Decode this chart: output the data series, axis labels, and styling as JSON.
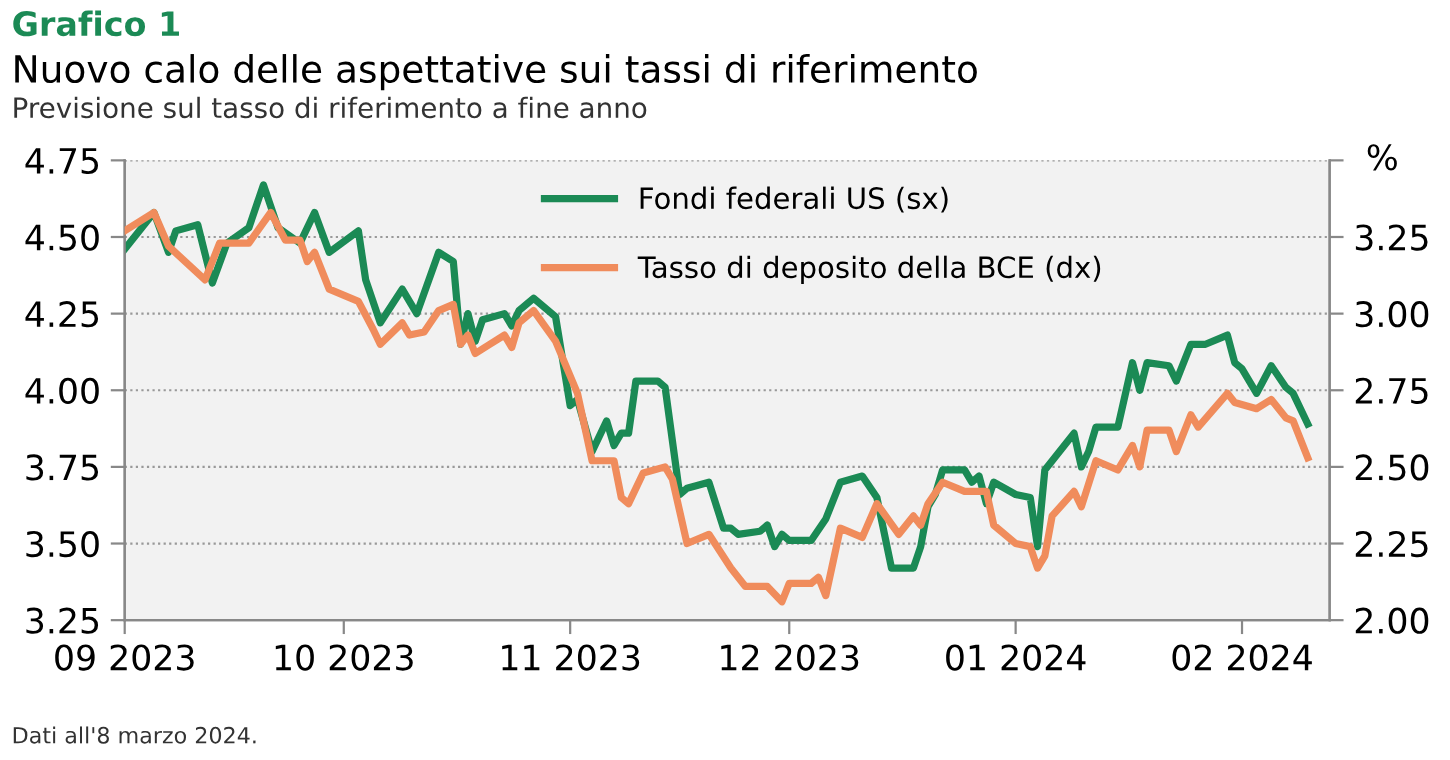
{
  "chart_data": {
    "type": "line",
    "title": "Nuovo calo delle aspettative sui tassi di riferimento",
    "subtitle": "Previsione sul tasso di riferimento a fine anno",
    "annotations": [
      "Grafico 1",
      "Dati all'8 marzo 2024."
    ],
    "y2label": "%",
    "series": [
      {
        "name": "Fondi federali US (sx)",
        "color": "#1b8a55",
        "x": [
          "2023-09-01",
          "2023-09-05",
          "2023-09-07",
          "2023-09-08",
          "2023-09-11",
          "2023-09-13",
          "2023-09-15",
          "2023-09-18",
          "2023-09-20",
          "2023-09-22",
          "2023-09-25",
          "2023-09-27",
          "2023-09-29",
          "2023-10-03",
          "2023-10-04",
          "2023-10-06",
          "2023-10-09",
          "2023-10-11",
          "2023-10-14",
          "2023-10-16",
          "2023-10-17",
          "2023-10-18",
          "2023-10-19",
          "2023-10-20",
          "2023-10-23",
          "2023-10-24",
          "2023-10-25",
          "2023-10-27",
          "2023-10-30",
          "2023-11-01",
          "2023-11-02",
          "2023-11-04",
          "2023-11-06",
          "2023-11-07",
          "2023-11-08",
          "2023-11-09",
          "2023-11-10",
          "2023-11-13",
          "2023-11-14",
          "2023-11-16",
          "2023-11-17",
          "2023-11-20",
          "2023-11-22",
          "2023-11-23",
          "2023-11-24",
          "2023-11-27",
          "2023-11-28",
          "2023-11-29",
          "2023-11-30",
          "2023-12-01",
          "2023-12-04",
          "2023-12-06",
          "2023-12-08",
          "2023-12-11",
          "2023-12-13",
          "2023-12-15",
          "2023-12-18",
          "2023-12-19",
          "2023-12-20",
          "2023-12-21",
          "2023-12-22",
          "2023-12-25",
          "2023-12-26",
          "2023-12-27",
          "2023-12-28",
          "2023-12-29",
          "2024-01-01",
          "2024-01-03",
          "2024-01-04",
          "2024-01-05",
          "2024-01-09",
          "2024-01-10",
          "2024-01-11",
          "2024-01-12",
          "2024-01-15",
          "2024-01-17",
          "2024-01-18",
          "2024-01-19",
          "2024-01-22",
          "2024-01-23",
          "2024-01-25",
          "2024-01-27",
          "2024-01-30",
          "2024-01-31",
          "2024-02-01",
          "2024-02-03",
          "2024-02-05",
          "2024-02-07",
          "2024-02-08",
          "2024-02-10"
        ],
        "values": [
          4.46,
          4.58,
          4.45,
          4.52,
          4.54,
          4.35,
          4.48,
          4.53,
          4.67,
          4.53,
          4.48,
          4.58,
          4.45,
          4.52,
          4.36,
          4.22,
          4.33,
          4.25,
          4.45,
          4.42,
          4.15,
          4.25,
          4.16,
          4.23,
          4.25,
          4.21,
          4.26,
          4.3,
          4.24,
          3.95,
          3.97,
          3.8,
          3.9,
          3.82,
          3.86,
          3.86,
          4.03,
          4.03,
          4.01,
          3.66,
          3.68,
          3.7,
          3.55,
          3.55,
          3.53,
          3.54,
          3.56,
          3.49,
          3.53,
          3.51,
          3.51,
          3.58,
          3.7,
          3.72,
          3.65,
          3.42,
          3.42,
          3.49,
          3.62,
          3.66,
          3.74,
          3.74,
          3.7,
          3.72,
          3.63,
          3.7,
          3.66,
          3.65,
          3.49,
          3.74,
          3.86,
          3.75,
          3.8,
          3.88,
          3.88,
          4.09,
          4.0,
          4.09,
          4.08,
          4.03,
          4.15,
          4.15,
          4.18,
          4.09,
          4.07,
          3.99,
          4.08,
          4.01,
          3.99,
          3.89
        ]
      },
      {
        "name": "Tasso di deposito della BCE (dx)",
        "color": "#f08c5c",
        "axis": "y2",
        "x": [
          "2023-09-01",
          "2023-09-05",
          "2023-09-07",
          "2023-09-12",
          "2023-09-14",
          "2023-09-18",
          "2023-09-21",
          "2023-09-23",
          "2023-09-25",
          "2023-09-26",
          "2023-09-27",
          "2023-09-29",
          "2023-10-03",
          "2023-10-05",
          "2023-10-06",
          "2023-10-09",
          "2023-10-10",
          "2023-10-12",
          "2023-10-14",
          "2023-10-16",
          "2023-10-17",
          "2023-10-18",
          "2023-10-19",
          "2023-10-21",
          "2023-10-23",
          "2023-10-24",
          "2023-10-25",
          "2023-10-27",
          "2023-10-30",
          "2023-11-02",
          "2023-11-04",
          "2023-11-07",
          "2023-11-08",
          "2023-11-09",
          "2023-11-11",
          "2023-11-14",
          "2023-11-15",
          "2023-11-17",
          "2023-11-20",
          "2023-11-23",
          "2023-11-25",
          "2023-11-28",
          "2023-11-30",
          "2023-12-01",
          "2023-12-04",
          "2023-12-05",
          "2023-12-06",
          "2023-12-08",
          "2023-12-11",
          "2023-12-13",
          "2023-12-16",
          "2023-12-18",
          "2023-12-19",
          "2023-12-20",
          "2023-12-22",
          "2023-12-25",
          "2023-12-28",
          "2023-12-29",
          "2024-01-01",
          "2024-01-03",
          "2024-01-04",
          "2024-01-05",
          "2024-01-06",
          "2024-01-09",
          "2024-01-10",
          "2024-01-12",
          "2024-01-15",
          "2024-01-17",
          "2024-01-18",
          "2024-01-19",
          "2024-01-22",
          "2024-01-23",
          "2024-01-25",
          "2024-01-26",
          "2024-01-30",
          "2024-01-31",
          "2024-02-03",
          "2024-02-05",
          "2024-02-07",
          "2024-02-08",
          "2024-02-10"
        ],
        "values": [
          3.27,
          3.33,
          3.22,
          3.11,
          3.23,
          3.23,
          3.33,
          3.24,
          3.24,
          3.17,
          3.2,
          3.08,
          3.04,
          2.95,
          2.9,
          2.97,
          2.93,
          2.94,
          3.01,
          3.03,
          2.9,
          2.93,
          2.87,
          2.9,
          2.93,
          2.89,
          2.97,
          3.01,
          2.91,
          2.74,
          2.52,
          2.52,
          2.4,
          2.38,
          2.48,
          2.5,
          2.46,
          2.25,
          2.28,
          2.17,
          2.11,
          2.11,
          2.06,
          2.12,
          2.12,
          2.14,
          2.08,
          2.3,
          2.27,
          2.38,
          2.28,
          2.34,
          2.31,
          2.38,
          2.45,
          2.42,
          2.42,
          2.31,
          2.25,
          2.24,
          2.17,
          2.21,
          2.34,
          2.42,
          2.37,
          2.52,
          2.49,
          2.57,
          2.5,
          2.62,
          2.62,
          2.55,
          2.67,
          2.63,
          2.74,
          2.71,
          2.69,
          2.72,
          2.66,
          2.65,
          2.53
        ]
      }
    ],
    "xlim": [
      "2023-09-01",
      "2024-02-13"
    ],
    "xticks": [
      {
        "value": "2023-09-01",
        "label": "09 2023"
      },
      {
        "value": "2023-10-01",
        "label": "10 2023"
      },
      {
        "value": "2023-11-01",
        "label": "11 2023"
      },
      {
        "value": "2023-12-01",
        "label": "12 2023"
      },
      {
        "value": "2024-01-01",
        "label": "01 2024"
      },
      {
        "value": "2024-02-01",
        "label": "02 2024"
      }
    ],
    "ylim": [
      3.25,
      4.75
    ],
    "yticks": [
      {
        "value": 3.25,
        "label": "3.25"
      },
      {
        "value": 3.5,
        "label": "3.50"
      },
      {
        "value": 3.75,
        "label": "3.75"
      },
      {
        "value": 4.0,
        "label": "4.00"
      },
      {
        "value": 4.25,
        "label": "4.25"
      },
      {
        "value": 4.5,
        "label": "4.50"
      },
      {
        "value": 4.75,
        "label": "4.75"
      }
    ],
    "y2lim": [
      2.0,
      3.5
    ],
    "y2ticks": [
      {
        "value": 2.0,
        "label": "2.00"
      },
      {
        "value": 2.25,
        "label": "2.25"
      },
      {
        "value": 2.5,
        "label": "2.50"
      },
      {
        "value": 2.75,
        "label": "2.75"
      },
      {
        "value": 3.0,
        "label": "3.00"
      },
      {
        "value": 3.25,
        "label": "3.25"
      },
      {
        "value": 3.5,
        "label": null
      }
    ],
    "grid": "y",
    "legend": "top",
    "marker": "none",
    "line_style": "solid"
  }
}
